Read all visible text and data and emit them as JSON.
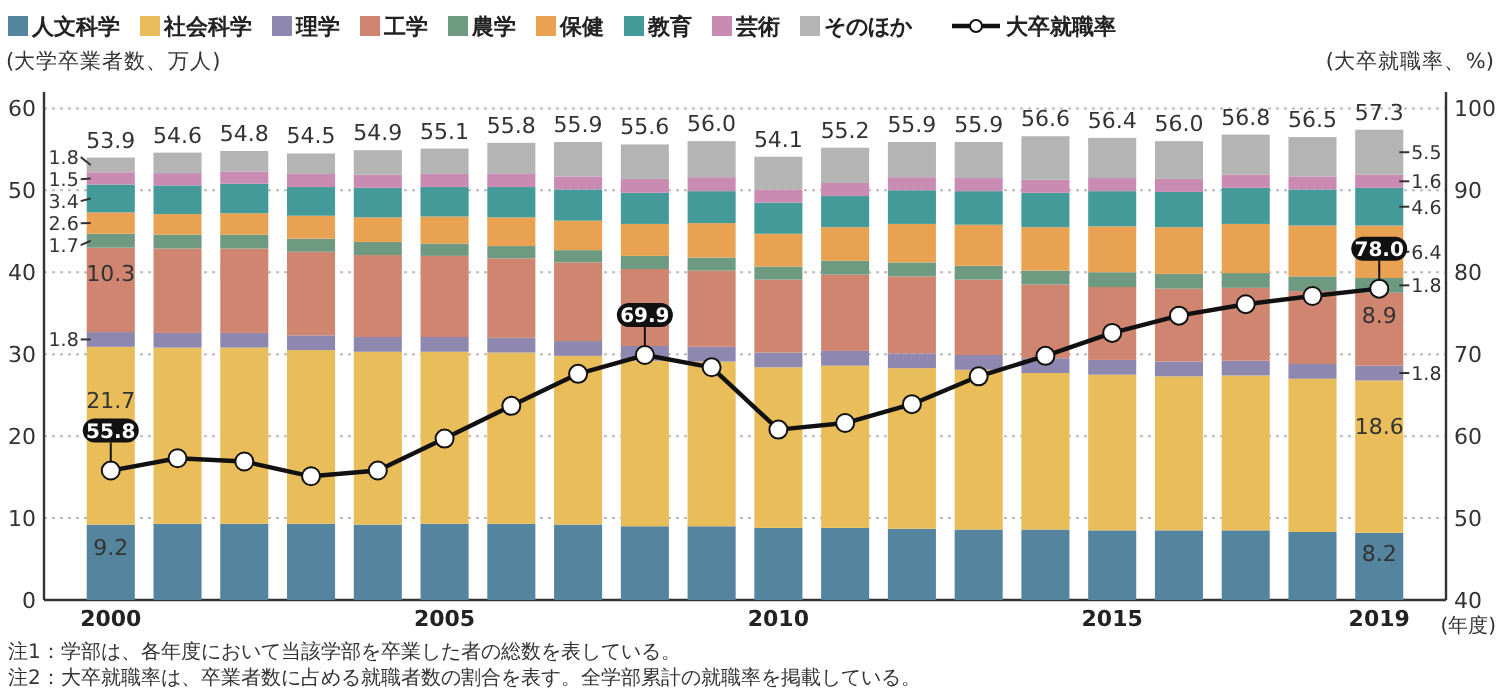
{
  "chart_data": {
    "type": "bar",
    "stacked": true,
    "categories": [
      "2000",
      null,
      null,
      null,
      null,
      "2005",
      null,
      null,
      null,
      null,
      "2010",
      null,
      null,
      null,
      null,
      "2015",
      null,
      null,
      null,
      "2019"
    ],
    "xlabel": "(年度)",
    "ylabel": "(大学卒業者数、万人)",
    "y2label": "(大卒就職率、%)",
    "ylim": [
      0,
      62
    ],
    "yticks": [
      0,
      10,
      20,
      30,
      40,
      50,
      60
    ],
    "y2lim": [
      40,
      102
    ],
    "y2ticks": [
      40,
      50,
      60,
      70,
      80,
      90,
      100
    ],
    "grid": "y",
    "legend": "top",
    "series": [
      {
        "name": "人文科学",
        "color": "#55849f",
        "values": [
          9.2,
          9.3,
          9.3,
          9.3,
          9.2,
          9.3,
          9.3,
          9.2,
          9.0,
          9.0,
          8.8,
          8.8,
          8.7,
          8.6,
          8.6,
          8.5,
          8.5,
          8.5,
          8.3,
          8.2
        ],
        "value_labels": [
          "9.2",
          null,
          null,
          null,
          null,
          null,
          null,
          null,
          null,
          null,
          null,
          null,
          null,
          null,
          null,
          null,
          null,
          null,
          null,
          "8.2"
        ]
      },
      {
        "name": "社会科学",
        "color": "#e9bd5a",
        "values": [
          21.7,
          21.5,
          21.5,
          21.2,
          21.1,
          21.0,
          20.9,
          20.6,
          20.2,
          20.1,
          19.6,
          19.8,
          19.6,
          19.5,
          19.1,
          19.0,
          18.8,
          18.9,
          18.7,
          18.6
        ],
        "value_labels": [
          "21.7",
          null,
          null,
          null,
          null,
          null,
          null,
          null,
          null,
          null,
          null,
          null,
          null,
          null,
          null,
          null,
          null,
          null,
          null,
          "18.6"
        ]
      },
      {
        "name": "理学",
        "color": "#8e88b0",
        "values": [
          1.8,
          1.8,
          1.8,
          1.8,
          1.8,
          1.8,
          1.8,
          1.8,
          1.8,
          1.8,
          1.8,
          1.8,
          1.8,
          1.8,
          1.8,
          1.8,
          1.8,
          1.8,
          1.8,
          1.8
        ],
        "value_labels": [
          "1.8",
          null,
          null,
          null,
          null,
          null,
          null,
          null,
          null,
          null,
          null,
          null,
          null,
          null,
          null,
          null,
          null,
          null,
          null,
          "1.8"
        ]
      },
      {
        "name": "工学",
        "color": "#d08571",
        "values": [
          10.3,
          10.3,
          10.3,
          10.2,
          10.0,
          9.9,
          9.7,
          9.6,
          9.4,
          9.3,
          8.9,
          9.3,
          9.4,
          9.2,
          9.0,
          8.9,
          8.9,
          8.9,
          8.9,
          8.9
        ],
        "value_labels": [
          "10.3",
          null,
          null,
          null,
          null,
          null,
          null,
          null,
          null,
          null,
          null,
          null,
          null,
          null,
          null,
          null,
          null,
          null,
          null,
          "8.9"
        ]
      },
      {
        "name": "農学",
        "color": "#6f9a82",
        "values": [
          1.7,
          1.7,
          1.7,
          1.6,
          1.6,
          1.5,
          1.5,
          1.5,
          1.6,
          1.6,
          1.6,
          1.7,
          1.7,
          1.7,
          1.7,
          1.8,
          1.8,
          1.8,
          1.8,
          1.8
        ],
        "value_labels": [
          "1.7",
          null,
          null,
          null,
          null,
          null,
          null,
          null,
          null,
          null,
          null,
          null,
          null,
          null,
          null,
          null,
          null,
          null,
          null,
          "1.8"
        ]
      },
      {
        "name": "保健",
        "color": "#e9a251",
        "values": [
          2.6,
          2.5,
          2.6,
          2.8,
          3.0,
          3.3,
          3.5,
          3.6,
          3.9,
          4.2,
          4.0,
          4.1,
          4.7,
          5.0,
          5.3,
          5.6,
          5.7,
          6.0,
          6.2,
          6.4
        ],
        "value_labels": [
          "2.6",
          null,
          null,
          null,
          null,
          null,
          null,
          null,
          null,
          null,
          null,
          null,
          null,
          null,
          null,
          null,
          null,
          null,
          null,
          "6.4"
        ]
      },
      {
        "name": "教育",
        "color": "#449a98",
        "values": [
          3.4,
          3.5,
          3.6,
          3.5,
          3.6,
          3.6,
          3.7,
          3.8,
          3.8,
          3.9,
          3.8,
          3.8,
          4.1,
          4.1,
          4.2,
          4.3,
          4.3,
          4.4,
          4.4,
          4.6
        ],
        "value_labels": [
          "3.4",
          null,
          null,
          null,
          null,
          null,
          null,
          null,
          null,
          null,
          null,
          null,
          null,
          null,
          null,
          null,
          null,
          null,
          null,
          "4.6"
        ]
      },
      {
        "name": "芸術",
        "color": "#c98bb2",
        "values": [
          1.5,
          1.5,
          1.5,
          1.6,
          1.6,
          1.6,
          1.6,
          1.6,
          1.7,
          1.7,
          1.6,
          1.6,
          1.6,
          1.6,
          1.6,
          1.6,
          1.6,
          1.6,
          1.6,
          1.6
        ],
        "value_labels": [
          "1.5",
          null,
          null,
          null,
          null,
          null,
          null,
          null,
          null,
          null,
          null,
          null,
          null,
          null,
          null,
          null,
          null,
          null,
          null,
          "1.6"
        ]
      },
      {
        "name": "そのほか",
        "color": "#b4b4b4",
        "values": [
          1.8,
          2.5,
          2.5,
          2.5,
          3.0,
          3.1,
          3.8,
          4.2,
          4.2,
          4.4,
          4.0,
          4.3,
          4.3,
          4.4,
          5.3,
          4.9,
          4.6,
          4.9,
          4.8,
          5.5
        ],
        "value_labels": [
          "1.8",
          null,
          null,
          null,
          null,
          null,
          null,
          null,
          null,
          null,
          null,
          null,
          null,
          null,
          null,
          null,
          null,
          null,
          null,
          "5.5"
        ]
      },
      {
        "name": "大卒就職率",
        "type": "line",
        "axis": "y2",
        "color": "#111111",
        "marker": "circle",
        "values": [
          55.8,
          57.3,
          56.9,
          55.1,
          55.8,
          59.7,
          63.7,
          67.6,
          69.9,
          68.4,
          60.8,
          61.6,
          63.9,
          67.3,
          69.8,
          72.6,
          74.7,
          76.1,
          77.1,
          78.0
        ],
        "value_labels": [
          "55.8",
          null,
          null,
          null,
          null,
          null,
          null,
          null,
          "69.9",
          null,
          null,
          null,
          null,
          null,
          null,
          null,
          null,
          null,
          null,
          "78.0"
        ]
      }
    ],
    "totals": [
      "53.9",
      "54.6",
      "54.8",
      "54.5",
      "54.9",
      "55.1",
      "55.8",
      "55.9",
      "55.6",
      "56.0",
      "54.1",
      "55.2",
      "55.9",
      "55.9",
      "56.6",
      "56.4",
      "56.0",
      "56.8",
      "56.5",
      "57.3"
    ],
    "annotations": [
      "注1：学部は、各年度において当該学部を卒業した者の総数を表している。",
      "注2：大卒就職率は、卒業者数に占める就職者数の割合を表す。全学部累計の就職率を掲載している。"
    ]
  }
}
